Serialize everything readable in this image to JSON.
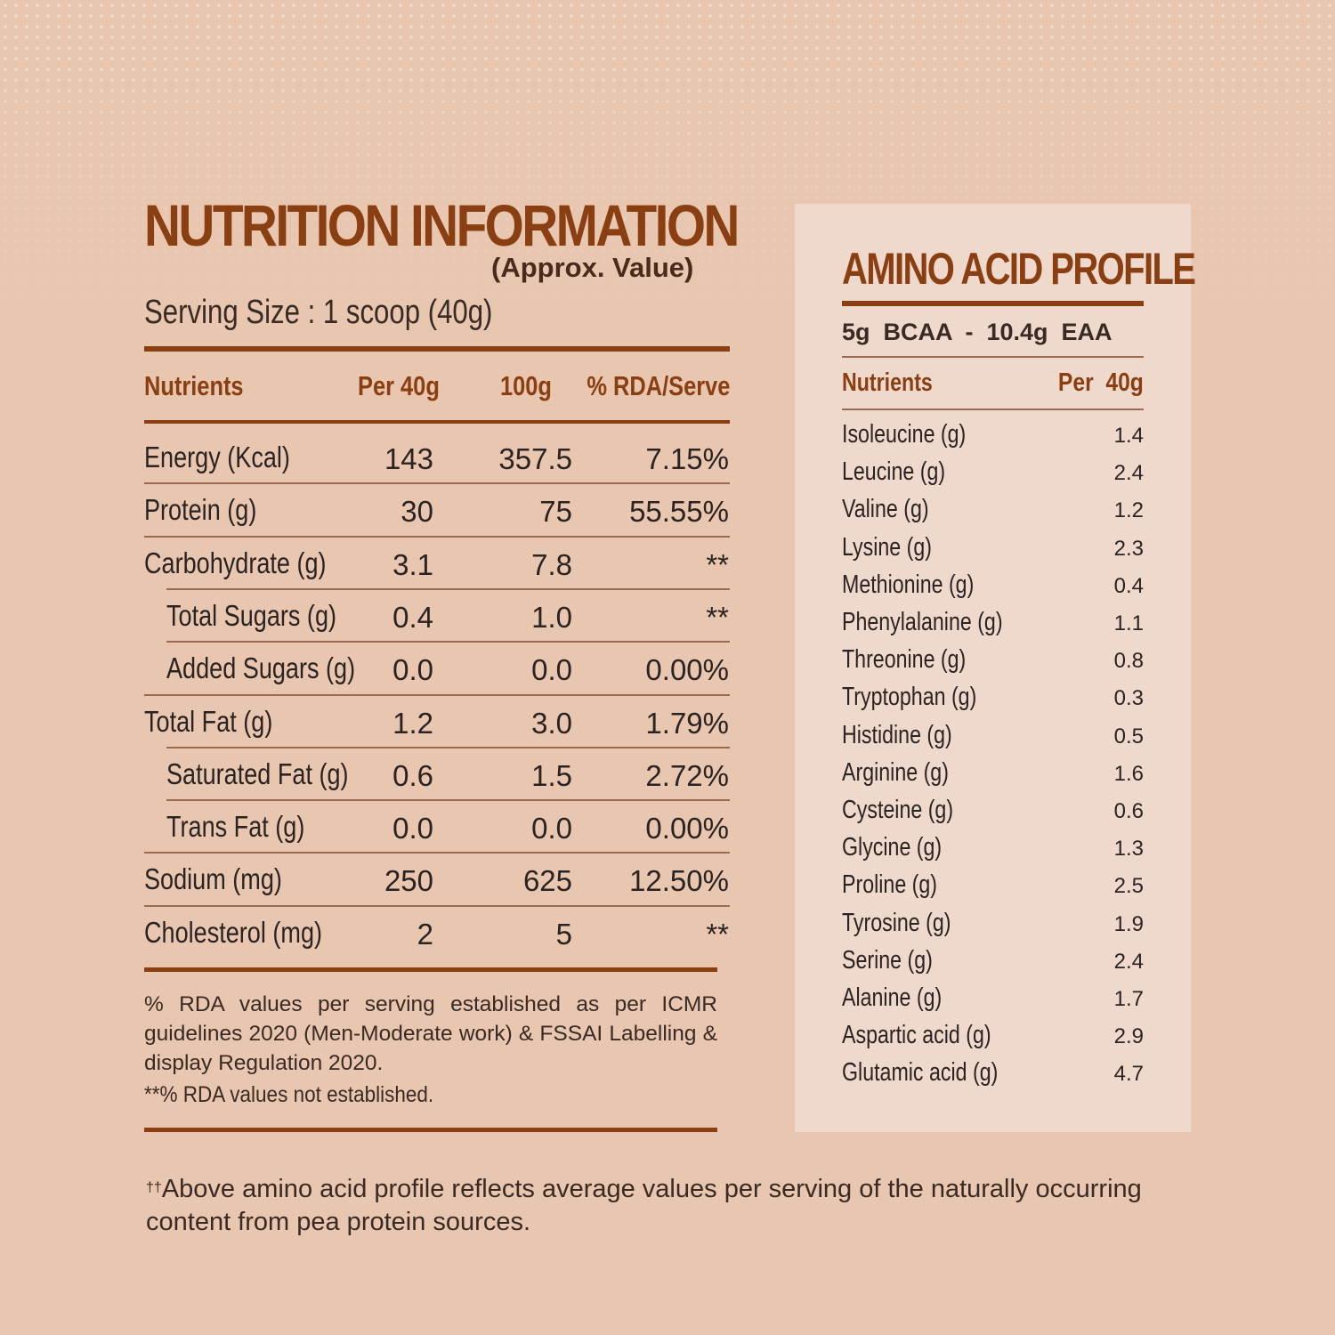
{
  "nutrition": {
    "title": "NUTRITION INFORMATION",
    "subtitle": "(Approx. Value)",
    "serving": "Serving Size : 1 scoop (40g)",
    "headers": [
      "Nutrients",
      "Per 40g",
      "100g",
      "% RDA/Serve"
    ],
    "rows": [
      {
        "name": "Energy (Kcal)",
        "per40": "143",
        "per100": "357.5",
        "rda": "7.15%",
        "indent": false
      },
      {
        "name": "Protein (g)",
        "per40": "30",
        "per100": "75",
        "rda": "55.55%",
        "indent": false
      },
      {
        "name": "Carbohydrate (g)",
        "per40": "3.1",
        "per100": "7.8",
        "rda": "**",
        "indent": false
      },
      {
        "name": "Total Sugars (g)",
        "per40": "0.4",
        "per100": "1.0",
        "rda": "**",
        "indent": true
      },
      {
        "name": "Added Sugars (g)",
        "per40": "0.0",
        "per100": "0.0",
        "rda": "0.00%",
        "indent": true
      },
      {
        "name": "Total Fat (g)",
        "per40": "1.2",
        "per100": "3.0",
        "rda": "1.79%",
        "indent": false
      },
      {
        "name": "Saturated Fat (g)",
        "per40": "0.6",
        "per100": "1.5",
        "rda": "2.72%",
        "indent": true
      },
      {
        "name": "Trans Fat (g)",
        "per40": "0.0",
        "per100": "0.0",
        "rda": "0.00%",
        "indent": true
      },
      {
        "name": "Sodium (mg)",
        "per40": "250",
        "per100": "625",
        "rda": "12.50%",
        "indent": false
      },
      {
        "name": "Cholesterol (mg)",
        "per40": "2",
        "per100": "5",
        "rda": "**",
        "indent": false
      }
    ],
    "note1": "% RDA values per serving established as per ICMR guidelines 2020 (Men-Moderate work) & FSSAI Labelling & display Regulation 2020.",
    "note2": "**% RDA values not established."
  },
  "amino": {
    "title": "AMINO ACID PROFILE",
    "bcaa_line": "5g  BCAA  -  10.4g  EAA",
    "headers": [
      "Nutrients",
      "Per  40g"
    ],
    "rows": [
      {
        "name": "Isoleucine (g)",
        "value": "1.4"
      },
      {
        "name": "Leucine (g)",
        "value": "2.4"
      },
      {
        "name": "Valine (g)",
        "value": "1.2"
      },
      {
        "name": "Lysine (g)",
        "value": "2.3"
      },
      {
        "name": "Methionine (g)",
        "value": "0.4"
      },
      {
        "name": "Phenylalanine (g)",
        "value": "1.1"
      },
      {
        "name": "Threonine (g)",
        "value": "0.8"
      },
      {
        "name": "Tryptophan (g)",
        "value": "0.3"
      },
      {
        "name": "Histidine (g)",
        "value": "0.5"
      },
      {
        "name": "Arginine (g)",
        "value": "1.6"
      },
      {
        "name": "Cysteine (g)",
        "value": "0.6"
      },
      {
        "name": "Glycine (g)",
        "value": "1.3"
      },
      {
        "name": "Proline (g)",
        "value": "2.5"
      },
      {
        "name": "Tyrosine (g)",
        "value": "1.9"
      },
      {
        "name": "Serine (g)",
        "value": "2.4"
      },
      {
        "name": "Alanine (g)",
        "value": "1.7"
      },
      {
        "name": "Aspartic acid (g)",
        "value": "2.9"
      },
      {
        "name": "Glutamic acid (g)",
        "value": "4.7"
      }
    ]
  },
  "footer": {
    "marker": "††",
    "text": "Above amino acid profile reflects average values per serving of the naturally occurring content from pea protein sources."
  },
  "colors": {
    "accent": "#8a3f12",
    "background": "#e8c6b0",
    "panel": "#efd9cd"
  }
}
